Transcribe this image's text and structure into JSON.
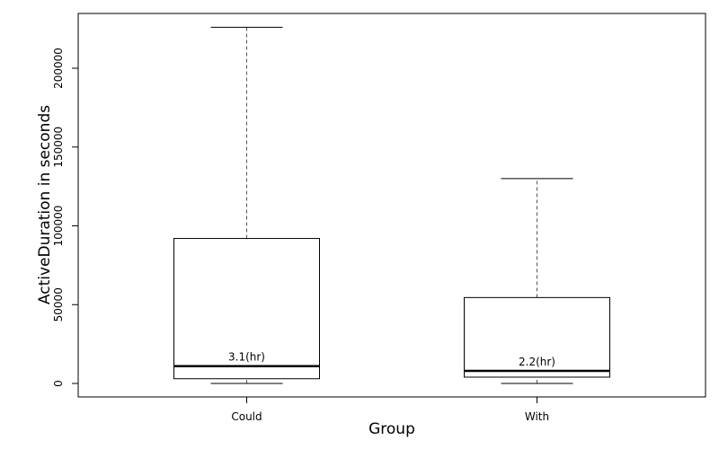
{
  "chart_data": {
    "type": "boxplot",
    "title": "",
    "xlabel": "Group",
    "ylabel": "ActiveDuration in seconds",
    "ylim": [
      0,
      230000
    ],
    "yticks": [
      0,
      50000,
      100000,
      150000,
      200000
    ],
    "ytick_labels": [
      "0",
      "50000",
      "100000",
      "150000",
      "200000"
    ],
    "categories": [
      "Could",
      "With"
    ],
    "boxes": [
      {
        "name": "Could",
        "whisker_low": 0,
        "q1": 3000,
        "median": 11000,
        "q3": 92000,
        "whisker_high": 226000,
        "label": "3.1(hr)"
      },
      {
        "name": "With",
        "whisker_low": 0,
        "q1": 4000,
        "median": 8000,
        "q3": 54500,
        "whisker_high": 130000,
        "label": "2.2(hr)"
      }
    ]
  }
}
